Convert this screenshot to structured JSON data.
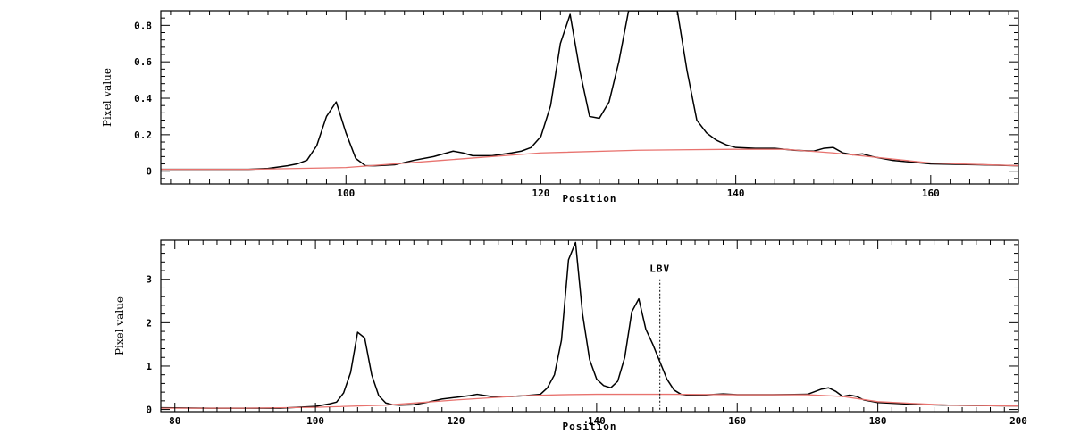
{
  "chart_data": [
    {
      "type": "line",
      "xlabel": "Position",
      "ylabel": "Pixel value",
      "xlim": [
        81,
        169
      ],
      "ylim": [
        -0.07,
        0.88
      ],
      "xticks": [
        100,
        120,
        140,
        160
      ],
      "yticks": [
        0,
        0.2,
        0.4,
        0.6,
        0.8
      ],
      "ytick_labels": [
        "0",
        "0.2",
        "0.4",
        "0.6",
        "0.8"
      ],
      "grid": false,
      "series": [
        {
          "color": "#000000",
          "x": [
            81,
            85,
            90,
            92,
            94,
            95,
            96,
            97,
            98,
            99,
            100,
            101,
            102,
            103,
            105,
            107,
            109,
            111,
            112,
            113,
            115,
            117,
            118,
            119,
            120,
            121,
            122,
            123,
            124,
            125,
            126,
            127,
            128,
            129,
            130,
            132,
            134,
            135,
            136,
            137,
            138,
            139,
            140,
            142,
            144,
            146,
            148,
            149,
            150,
            151,
            152,
            153,
            154,
            156,
            158,
            160,
            165,
            169
          ],
          "y": [
            0.01,
            0.01,
            0.01,
            0.015,
            0.03,
            0.04,
            0.06,
            0.14,
            0.3,
            0.38,
            0.21,
            0.07,
            0.03,
            0.03,
            0.035,
            0.06,
            0.08,
            0.11,
            0.1,
            0.085,
            0.085,
            0.1,
            0.11,
            0.13,
            0.19,
            0.36,
            0.7,
            0.86,
            0.55,
            0.3,
            0.29,
            0.38,
            0.6,
            0.88,
            0.88,
            0.88,
            0.88,
            0.55,
            0.28,
            0.21,
            0.17,
            0.145,
            0.13,
            0.125,
            0.125,
            0.115,
            0.11,
            0.125,
            0.13,
            0.1,
            0.09,
            0.095,
            0.08,
            0.06,
            0.05,
            0.04,
            0.035,
            0.03
          ]
        },
        {
          "color": "#e8736f",
          "x": [
            81,
            90,
            100,
            110,
            120,
            130,
            140,
            145,
            150,
            160,
            169
          ],
          "y": [
            0.01,
            0.01,
            0.02,
            0.06,
            0.1,
            0.115,
            0.12,
            0.12,
            0.1,
            0.045,
            0.03
          ]
        }
      ]
    },
    {
      "type": "line",
      "xlabel": "Position",
      "ylabel": "Pixel value",
      "xlim": [
        78,
        200
      ],
      "ylim": [
        -0.05,
        3.9
      ],
      "xticks": [
        80,
        100,
        120,
        140,
        160,
        180,
        200
      ],
      "yticks": [
        0,
        1,
        2,
        3
      ],
      "ytick_labels": [
        "0",
        "1",
        "2",
        "3"
      ],
      "grid": false,
      "annotations": [
        {
          "text": "LBV",
          "x": 149,
          "y_top": 3.0
        }
      ],
      "series": [
        {
          "color": "#000000",
          "x": [
            78,
            85,
            90,
            95,
            100,
            102,
            103,
            104,
            105,
            106,
            107,
            108,
            109,
            110,
            111,
            112,
            114,
            116,
            118,
            120,
            122,
            123,
            125,
            128,
            130,
            132,
            133,
            134,
            135,
            136,
            137,
            138,
            139,
            140,
            141,
            142,
            143,
            144,
            145,
            146,
            147,
            148,
            149,
            150,
            151,
            152,
            153,
            155,
            158,
            160,
            165,
            170,
            172,
            173,
            174,
            175,
            176,
            177,
            178,
            180,
            185,
            190,
            200
          ],
          "y": [
            0.04,
            0.03,
            0.03,
            0.03,
            0.07,
            0.13,
            0.17,
            0.38,
            0.85,
            1.78,
            1.65,
            0.8,
            0.32,
            0.15,
            0.11,
            0.1,
            0.11,
            0.17,
            0.24,
            0.28,
            0.32,
            0.35,
            0.3,
            0.3,
            0.32,
            0.35,
            0.5,
            0.8,
            1.6,
            3.45,
            3.85,
            2.2,
            1.15,
            0.7,
            0.55,
            0.5,
            0.65,
            1.2,
            2.25,
            2.55,
            1.85,
            1.5,
            1.1,
            0.7,
            0.45,
            0.35,
            0.33,
            0.33,
            0.36,
            0.34,
            0.34,
            0.35,
            0.47,
            0.5,
            0.42,
            0.3,
            0.33,
            0.3,
            0.22,
            0.16,
            0.12,
            0.1,
            0.08
          ]
        },
        {
          "color": "#e8736f",
          "x": [
            78,
            90,
            100,
            110,
            120,
            130,
            135,
            140,
            150,
            160,
            170,
            175,
            180,
            190,
            200
          ],
          "y": [
            0.03,
            0.03,
            0.05,
            0.1,
            0.22,
            0.32,
            0.34,
            0.35,
            0.35,
            0.34,
            0.34,
            0.3,
            0.18,
            0.1,
            0.08
          ]
        }
      ]
    }
  ]
}
